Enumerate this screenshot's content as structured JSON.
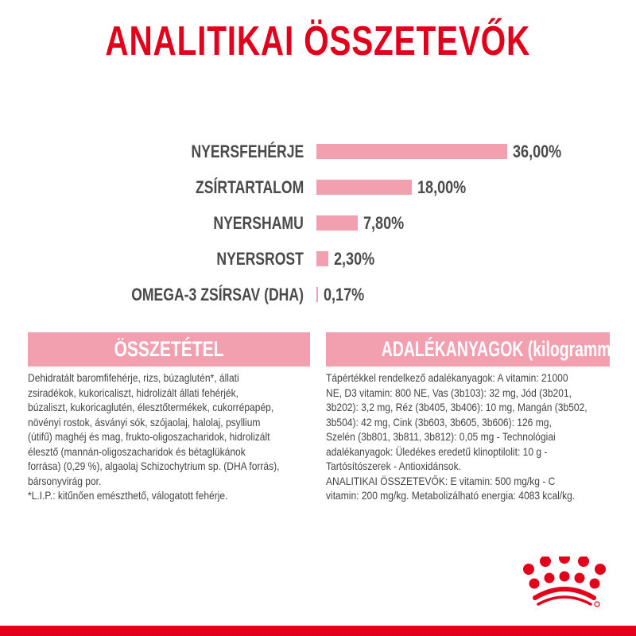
{
  "title": "ANALITIKAI ÖSSZETEVŐK",
  "colors": {
    "title": "#e2001a",
    "bar": "#f29fb0",
    "header_bg": "#f29fb0",
    "text": "#444444",
    "brand_red": "#e2001a"
  },
  "chart_data": {
    "type": "bar",
    "orientation": "horizontal",
    "categories": [
      "NYERSFEHÉRJE",
      "ZSÍRTARTALOM",
      "NYERSHAMU",
      "NYERSROST",
      "OMEGA-3 ZSÍRSAV (DHA)"
    ],
    "values": [
      36.0,
      18.0,
      7.8,
      2.3,
      0.17
    ],
    "value_labels": [
      "36,00%",
      "18,00%",
      "7,80%",
      "2,30%",
      "0,17%"
    ],
    "unit": "%",
    "grid": false
  },
  "composition": {
    "heading": "ÖSSZETÉTEL",
    "lines": [
      "Dehidratált baromfifehérje, rizs, búzaglutén*, állati",
      "zsiradékok, kukoricaliszt, hidrolizált állati fehérjék,",
      "búzaliszt, kukoricaglutén, élesztőtermékek, cukorrépapép,",
      "növényi rostok, ásványi sók, szójaolaj, halolaj, psyllium",
      "(útifű) maghéj és mag, frukto-oligoszacharidok, hidrolizált",
      "élesztő (mannán-oligoszacharidok és bétaglükánok",
      "forrása) (0,29 %), algaolaj Schizochytrium sp. (DHA forrás),",
      "bársonyvirág por.",
      "*L.I.P.: kitűnően emészthető, válogatott fehérje."
    ]
  },
  "additives": {
    "heading": "ADALÉKANYAGOK (kilogrammonként)",
    "lines": [
      "Tápértékkel rendelkező adalékanyagok: A vitamin: 21000",
      "NE, D3 vitamin: 800 NE, Vas (3b103): 32 mg, Jód (3b201,",
      "3b202): 3,2 mg, Réz (3b405, 3b406): 10 mg, Mangán (3b502,",
      "3b504): 42 mg, Cink (3b603, 3b605, 3b606): 126 mg,",
      "Szelén (3b801, 3b811, 3b812): 0,05 mg - Technológiai",
      "adalékanyagok: Üledékes eredetű klinoptilolit: 10 g -",
      "Tartósítószerek - Antioxidánsok.",
      "ANALITIKAI ÖSSZETEVŐK: E vitamin: 500 mg/kg - C",
      "vitamin: 200 mg/kg. Metabolizálható energia: 4083 kcal/kg."
    ]
  },
  "logo": {
    "icon": "royal-canin-crown-icon"
  }
}
